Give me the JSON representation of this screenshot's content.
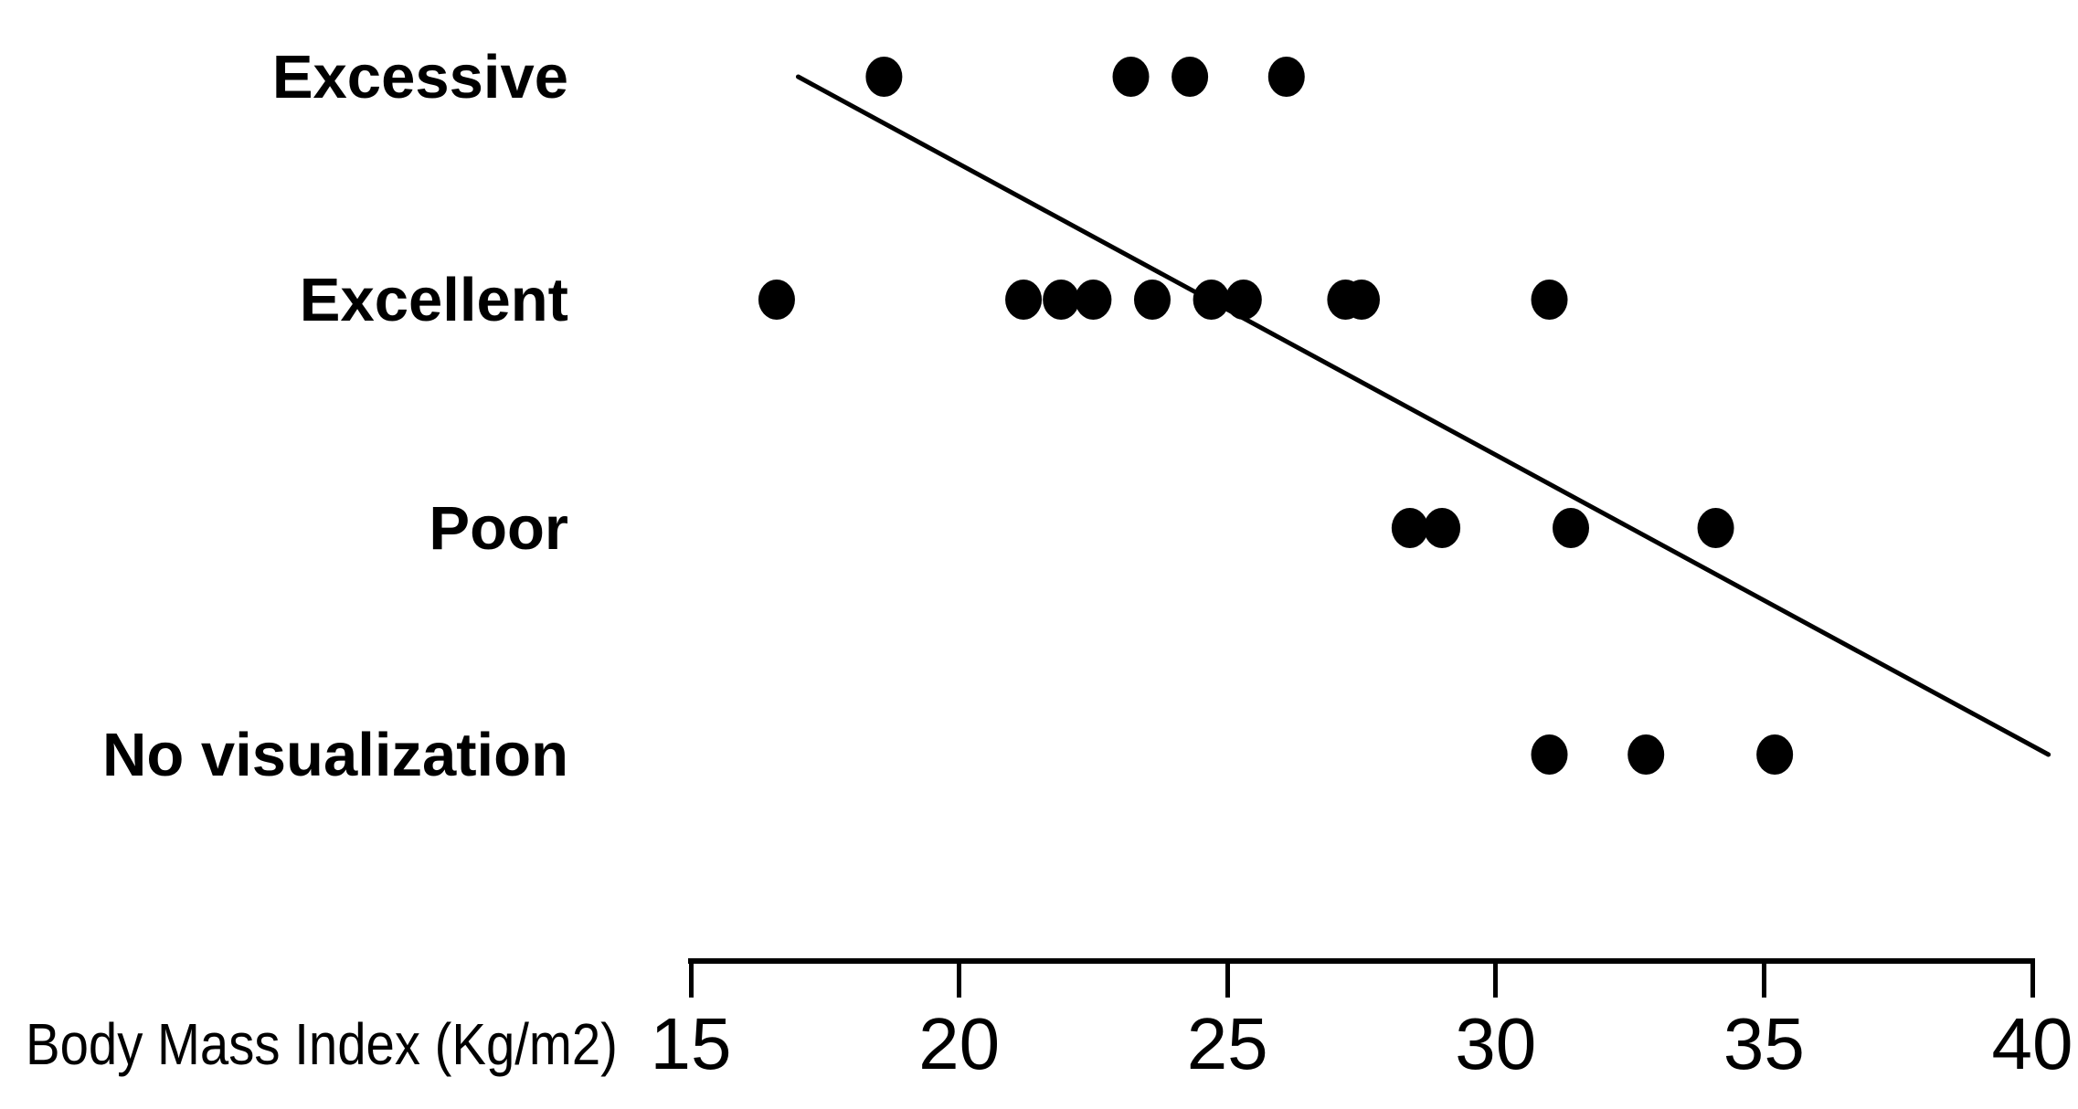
{
  "chart_data": {
    "type": "scatter",
    "title": "",
    "xlabel": "Body Mass Index (Kg/m2)",
    "x_axis": {
      "ticks": [
        15,
        20,
        25,
        30,
        35,
        40
      ],
      "range": [
        15,
        40
      ]
    },
    "y_axis": {
      "categories": [
        "Excessive",
        "Excellent",
        "Poor",
        "No visualization"
      ]
    },
    "grid": false,
    "legend": "none",
    "marker": {
      "shape": "dot",
      "color": "#000000"
    },
    "series": [
      {
        "name": "Excessive",
        "x": [
          18.6,
          23.2,
          24.3,
          26.1
        ]
      },
      {
        "name": "Excellent",
        "x": [
          16.6,
          21.2,
          21.9,
          22.5,
          23.6,
          24.7,
          25.3,
          27.2,
          27.5,
          31.0
        ]
      },
      {
        "name": "Poor",
        "x": [
          28.4,
          29.0,
          31.4,
          34.1
        ]
      },
      {
        "name": "No visualization",
        "x": [
          31.0,
          32.8,
          35.2
        ]
      }
    ],
    "trend_line": {
      "x_start": 17.0,
      "y_start_category": "Excessive",
      "x_end": 40.3,
      "y_end_category": "No visualization",
      "color": "#000000"
    }
  }
}
